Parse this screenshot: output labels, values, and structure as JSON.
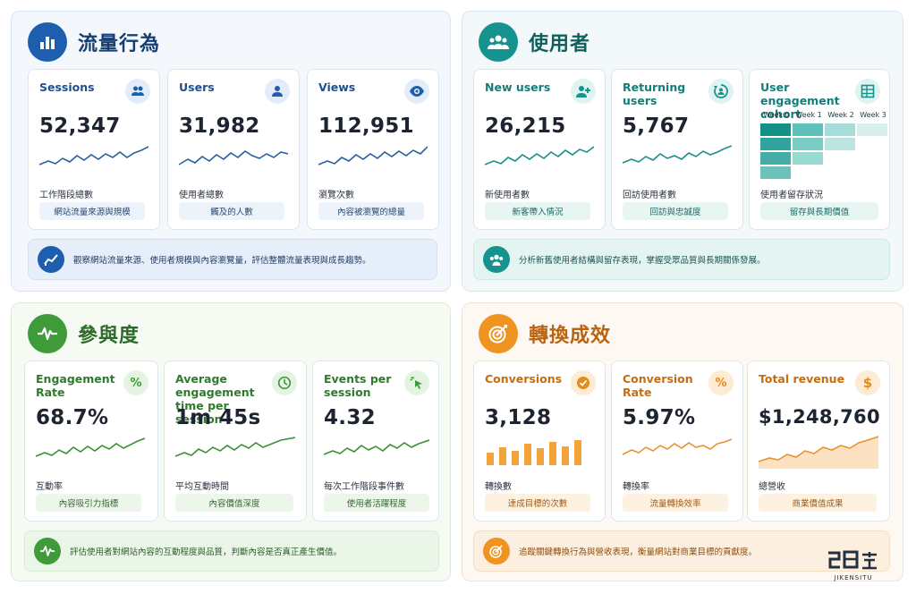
{
  "sections": {
    "traffic": {
      "title": "流量行為",
      "note": "觀察網站流量來源、使用者規模與內容瀏覽量，評估整體流量表現與成長趨勢。",
      "cards": [
        {
          "label": "Sessions",
          "value": "52,347",
          "sub": "工作階段總數",
          "pill": "網站流量來源與規模"
        },
        {
          "label": "Users",
          "value": "31,982",
          "sub": "使用者總數",
          "pill": "觸及的人數"
        },
        {
          "label": "Views",
          "value": "112,951",
          "sub": "瀏覽次數",
          "pill": "內容被瀏覽的總量"
        }
      ]
    },
    "users": {
      "title": "使用者",
      "note": "分析新舊使用者結構與留存表現，掌握受眾品質與長期關係發展。",
      "cards": [
        {
          "label": "New users",
          "value": "26,215",
          "sub": "新使用者數",
          "pill": "新客帶入情況"
        },
        {
          "label": "Returning users",
          "value": "5,767",
          "sub": "回訪使用者數",
          "pill": "回訪與忠誠度"
        }
      ],
      "cohort": {
        "label": "User engagement cohort",
        "weeks": [
          "Week 0",
          "Week 1",
          "Week 2",
          "Week 3"
        ],
        "sub": "使用者留存狀況",
        "pill": "留存與長期價值"
      }
    },
    "engagement": {
      "title": "參與度",
      "note": "評估使用者對網站內容的互動程度與品質，判斷內容是否真正產生價值。",
      "cards": [
        {
          "label": "Engagement Rate",
          "value": "68.7%",
          "sub": "互動率",
          "pill": "內容吸引力指標"
        },
        {
          "label": "Average engagement time per session",
          "value": "1m 45s",
          "sub": "平均互動時間",
          "pill": "內容價值深度"
        },
        {
          "label": "Events per session",
          "value": "4.32",
          "sub": "每次工作階段事件數",
          "pill": "使用者活躍程度"
        }
      ]
    },
    "conversion": {
      "title": "轉換成效",
      "note": "追蹤關鍵轉換行為與營收表現，衡量網站對商業目標的貢獻度。",
      "cards": [
        {
          "label": "Conversions",
          "value": "3,128",
          "sub": "轉換數",
          "pill": "達成目標的次數"
        },
        {
          "label": "Conversion Rate",
          "value": "5.97%",
          "sub": "轉換率",
          "pill": "流量轉換效率"
        },
        {
          "label": "Total revenue",
          "value": "$1,248,760",
          "sub": "總營收",
          "pill": "商業價值成果"
        }
      ]
    }
  },
  "icons": {
    "traffic": "bar-chart-icon",
    "sessions": "people-icon",
    "users": "person-icon",
    "views": "eye-icon",
    "users_section": "group-icon",
    "new_users": "add-user-icon",
    "returning_users": "return-user-icon",
    "cohort": "grid-table-icon",
    "engagement": "pulse-icon",
    "engagement_rate": "percent-icon",
    "avg_time": "clock-icon",
    "events": "click-icon",
    "conversion": "target-icon",
    "conversions": "check-circle-icon",
    "conversion_rate": "percent-icon",
    "revenue": "dollar-icon"
  },
  "colors": {
    "blue": "#1d5fae",
    "teal": "#16938f",
    "green": "#3f9a3a",
    "orange": "#ef9421"
  },
  "logo": {
    "text": "JIKENSITU"
  }
}
